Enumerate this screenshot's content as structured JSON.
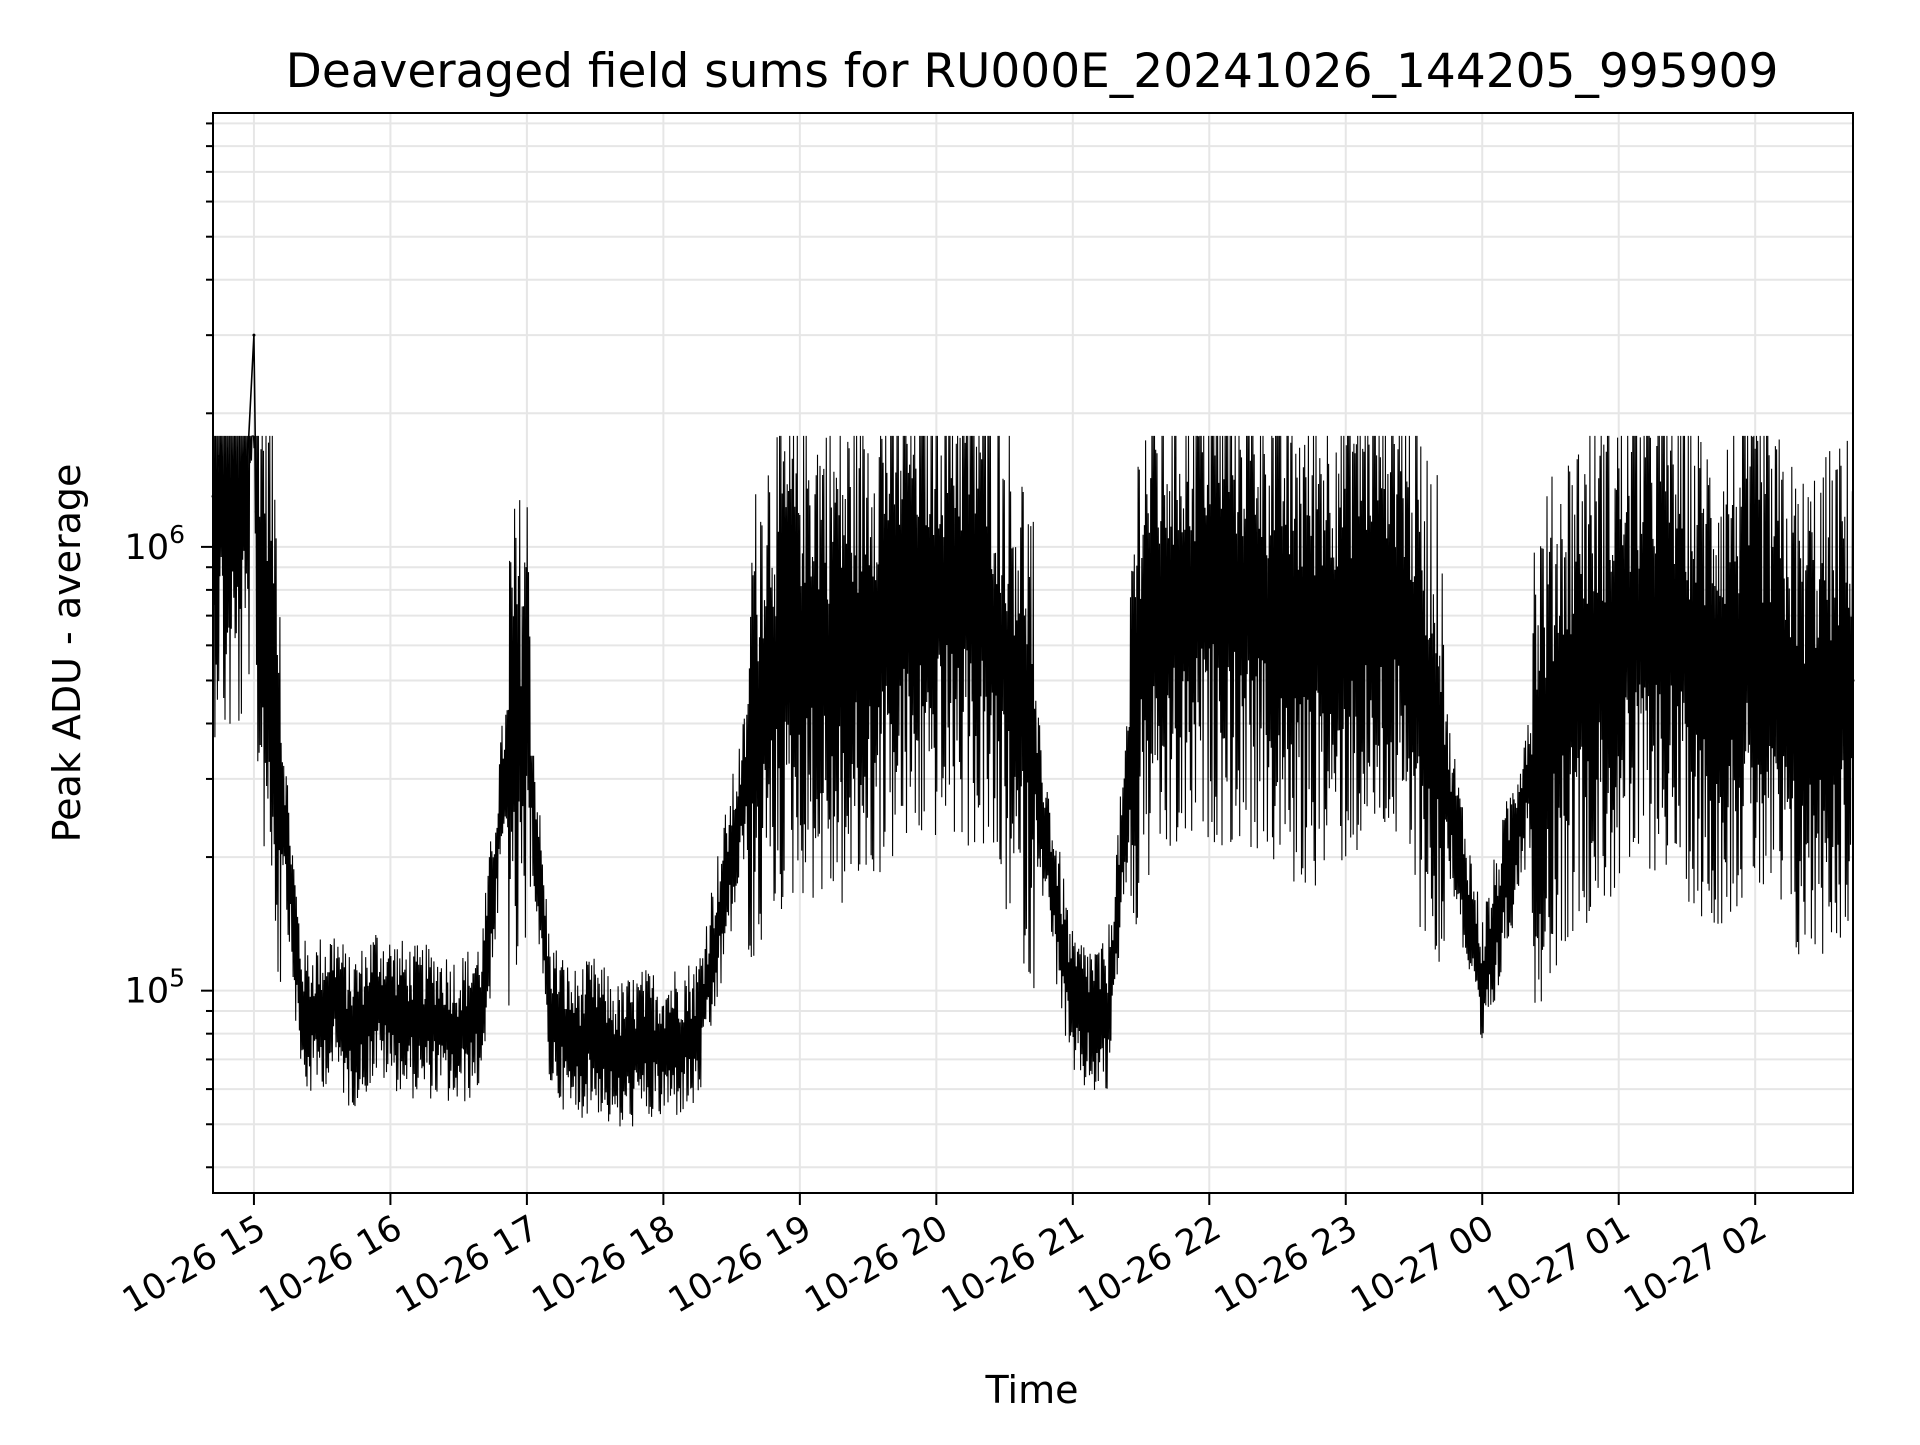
{
  "chart_data": {
    "type": "line",
    "title": "Deaveraged field sums for RU000E_20241026_144205_995909",
    "xlabel": "Time",
    "ylabel": "Peak ADU - average",
    "y_scale": "log",
    "ylim": [
      35000,
      9500000
    ],
    "xlim": [
      "2024-10-26 14:42",
      "2024-10-27 02:43"
    ],
    "grid": true,
    "legend": "none",
    "line_color": "#000000",
    "x_tick_labels": [
      "10-26 15",
      "10-26 16",
      "10-26 17",
      "10-26 18",
      "10-26 19",
      "10-26 20",
      "10-26 21",
      "10-26 22",
      "10-26 23",
      "10-27 00",
      "10-27 01",
      "10-27 02"
    ],
    "x_tick_values": [
      "2024-10-26 15:00",
      "2024-10-26 16:00",
      "2024-10-26 17:00",
      "2024-10-26 18:00",
      "2024-10-26 19:00",
      "2024-10-26 20:00",
      "2024-10-26 21:00",
      "2024-10-26 22:00",
      "2024-10-26 23:00",
      "2024-10-27 00:00",
      "2024-10-27 01:00",
      "2024-10-27 02:00"
    ],
    "y_ticks": [
      {
        "value": 100000,
        "base": "10",
        "exp": "5"
      },
      {
        "value": 1000000,
        "base": "10",
        "exp": "6"
      }
    ],
    "series": [
      {
        "name": "",
        "x": [
          "2024-10-26 14:42",
          "2024-10-26 14:45",
          "2024-10-26 14:48",
          "2024-10-26 14:51",
          "2024-10-26 14:54",
          "2024-10-26 14:57",
          "2024-10-26 15:00",
          "2024-10-26 15:01",
          "2024-10-26 15:03",
          "2024-10-26 15:06",
          "2024-10-26 15:09",
          "2024-10-26 15:12",
          "2024-10-26 15:15",
          "2024-10-26 15:18",
          "2024-10-26 15:21",
          "2024-10-26 15:24",
          "2024-10-26 15:30",
          "2024-10-26 15:36",
          "2024-10-26 15:42",
          "2024-10-26 15:48",
          "2024-10-26 15:54",
          "2024-10-26 16:00",
          "2024-10-26 16:10",
          "2024-10-26 16:20",
          "2024-10-26 16:30",
          "2024-10-26 16:40",
          "2024-10-26 16:50",
          "2024-10-26 17:00",
          "2024-10-26 17:10",
          "2024-10-26 17:20",
          "2024-10-26 17:30",
          "2024-10-26 17:40",
          "2024-10-26 17:50",
          "2024-10-26 18:00",
          "2024-10-26 18:15",
          "2024-10-26 18:30",
          "2024-10-26 18:45",
          "2024-10-26 19:00",
          "2024-10-26 19:20",
          "2024-10-26 19:40",
          "2024-10-26 20:00",
          "2024-10-26 20:20",
          "2024-10-26 20:40",
          "2024-10-26 21:00",
          "2024-10-26 21:15",
          "2024-10-26 21:30",
          "2024-10-26 21:45",
          "2024-10-26 22:00",
          "2024-10-26 22:20",
          "2024-10-26 22:40",
          "2024-10-26 23:00",
          "2024-10-26 23:20",
          "2024-10-26 23:40",
          "2024-10-27 00:00",
          "2024-10-27 00:20",
          "2024-10-27 00:40",
          "2024-10-27 01:00",
          "2024-10-27 01:20",
          "2024-10-27 01:40",
          "2024-10-27 02:00",
          "2024-10-27 02:20",
          "2024-10-27 02:43"
        ],
        "y": [
          1300000,
          1600000,
          1200000,
          1400000,
          1300000,
          1500000,
          3000000,
          1200000,
          800000,
          700000,
          500000,
          300000,
          200000,
          130000,
          90000,
          85000,
          90000,
          95000,
          80000,
          85000,
          95000,
          90000,
          85000,
          85000,
          80000,
          90000,
          300000,
          400000,
          90000,
          75000,
          80000,
          70000,
          75000,
          75000,
          80000,
          200000,
          500000,
          600000,
          550000,
          700000,
          800000,
          750000,
          400000,
          90000,
          85000,
          600000,
          700000,
          800000,
          750000,
          600000,
          700000,
          800000,
          400000,
          100000,
          300000,
          500000,
          600000,
          700000,
          500000,
          600000,
          400000,
          500000
        ]
      }
    ]
  }
}
